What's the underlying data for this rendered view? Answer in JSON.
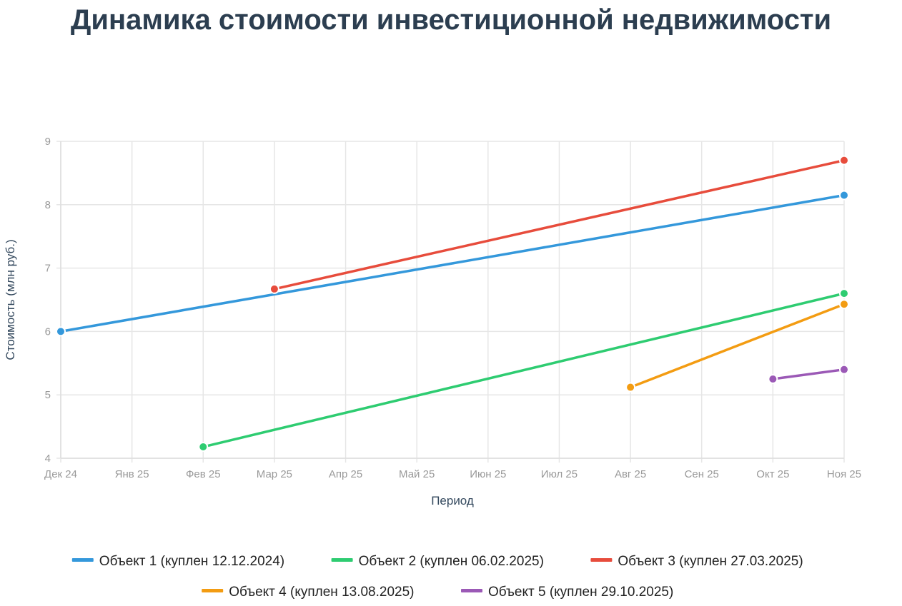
{
  "chart_data": {
    "type": "line",
    "title": "Динамика стоимости инвестиционной недвижимости",
    "xlabel": "Период",
    "ylabel": "Стоимость (млн руб.)",
    "ylim": [
      4,
      9
    ],
    "y_ticks": [
      "4",
      "5",
      "6",
      "7",
      "8",
      "9"
    ],
    "categories": [
      "Дек 24",
      "Янв 25",
      "Фев 25",
      "Мар 25",
      "Апр 25",
      "Май 25",
      "Июн 25",
      "Июл 25",
      "Авг 25",
      "Сен 25",
      "Окт 25",
      "Ноя 25"
    ],
    "grid": true,
    "legend_position": "bottom",
    "series": [
      {
        "name": "Объект 1 (куплен 12.12.2024)",
        "color": "#3498db",
        "points": [
          {
            "x": "Дек 24",
            "y": 6.0
          },
          {
            "x": "Ноя 25",
            "y": 8.15
          }
        ]
      },
      {
        "name": "Объект 2 (куплен 06.02.2025)",
        "color": "#2ecc71",
        "points": [
          {
            "x": "Фев 25",
            "y": 4.18
          },
          {
            "x": "Ноя 25",
            "y": 6.6
          }
        ]
      },
      {
        "name": "Объект 3 (куплен 27.03.2025)",
        "color": "#e74c3c",
        "points": [
          {
            "x": "Мар 25",
            "y": 6.67
          },
          {
            "x": "Ноя 25",
            "y": 8.7
          }
        ]
      },
      {
        "name": "Объект 4 (куплен 13.08.2025)",
        "color": "#f39c12",
        "points": [
          {
            "x": "Авг 25",
            "y": 5.12
          },
          {
            "x": "Ноя 25",
            "y": 6.43
          }
        ]
      },
      {
        "name": "Объект 5 (куплен 29.10.2025)",
        "color": "#9b59b6",
        "points": [
          {
            "x": "Окт 25",
            "y": 5.25
          },
          {
            "x": "Ноя 25",
            "y": 5.4
          }
        ]
      }
    ]
  }
}
